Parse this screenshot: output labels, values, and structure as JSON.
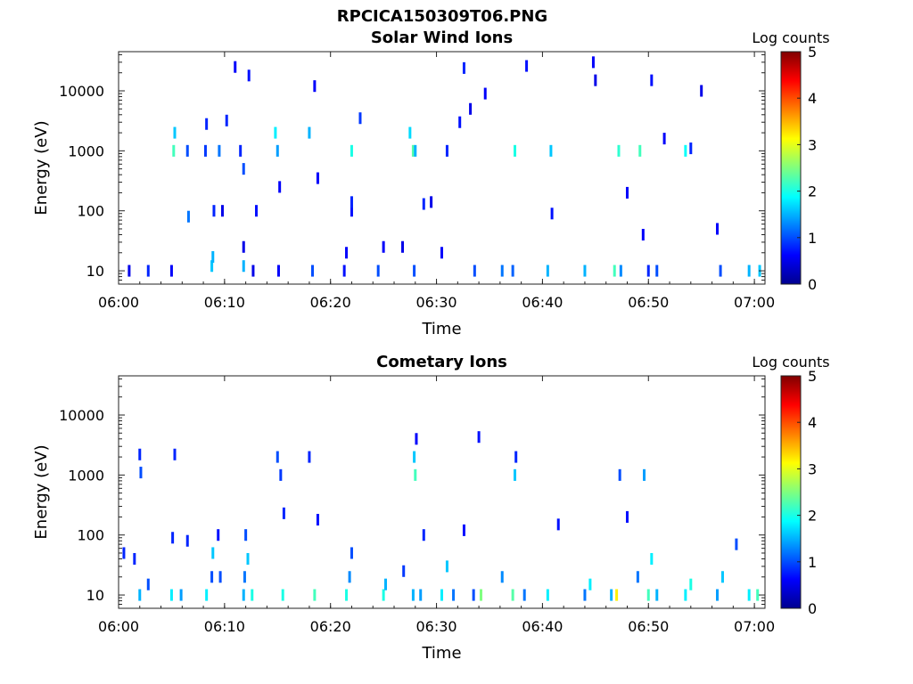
{
  "figure": {
    "filename": "RPCICA150309T06.PNG"
  },
  "colorbar": {
    "label": "Log counts",
    "ticks": [
      "0",
      "1",
      "2",
      "3",
      "4",
      "5"
    ],
    "range": [
      0,
      5
    ],
    "colormap": "jet"
  },
  "chart_data": [
    {
      "type": "heatmap",
      "title": "Solar Wind Ions",
      "xlabel": "Time",
      "ylabel": "Energy (eV)",
      "x_tick_labels": [
        "06:00",
        "06:10",
        "06:20",
        "06:30",
        "06:40",
        "06:50",
        "07:00"
      ],
      "x_range_minutes": [
        0,
        61
      ],
      "y_scale": "log",
      "y_tick_labels": [
        "10",
        "100",
        "1000",
        "10000"
      ],
      "y_range": [
        6,
        45000
      ],
      "z_label": "Log counts",
      "z_range": [
        0,
        5
      ],
      "cells": [
        [
          1.0,
          10,
          0.5
        ],
        [
          2.8,
          10,
          0.8
        ],
        [
          5.0,
          10,
          0.6
        ],
        [
          5.2,
          1000,
          2.2
        ],
        [
          5.3,
          2000,
          1.6
        ],
        [
          6.5,
          1000,
          1.0
        ],
        [
          6.6,
          80,
          1.2
        ],
        [
          8.2,
          1000,
          0.9
        ],
        [
          8.3,
          2800,
          0.8
        ],
        [
          8.8,
          12,
          1.6
        ],
        [
          8.9,
          17,
          1.5
        ],
        [
          9.0,
          100,
          0.8
        ],
        [
          9.5,
          1000,
          1.2
        ],
        [
          9.8,
          100,
          0.5
        ],
        [
          10.2,
          3200,
          0.8
        ],
        [
          11.0,
          25000,
          0.6
        ],
        [
          11.5,
          1000,
          0.8
        ],
        [
          11.8,
          500,
          1.0
        ],
        [
          11.8,
          12,
          1.5
        ],
        [
          11.8,
          25,
          0.5
        ],
        [
          12.3,
          18000,
          0.7
        ],
        [
          12.7,
          10,
          0.5
        ],
        [
          13.0,
          100,
          0.7
        ],
        [
          14.8,
          2000,
          1.8
        ],
        [
          15.0,
          1000,
          1.4
        ],
        [
          15.1,
          10,
          0.6
        ],
        [
          15.2,
          250,
          0.6
        ],
        [
          18.0,
          2000,
          1.5
        ],
        [
          18.3,
          10,
          1.0
        ],
        [
          18.5,
          12000,
          0.6
        ],
        [
          18.8,
          350,
          0.6
        ],
        [
          21.3,
          10,
          0.7
        ],
        [
          21.5,
          20,
          0.6
        ],
        [
          22.0,
          1000,
          2.0
        ],
        [
          22.0,
          100,
          0.7
        ],
        [
          22.0,
          140,
          0.8
        ],
        [
          22.8,
          3500,
          0.9
        ],
        [
          24.5,
          10,
          1.0
        ],
        [
          25.0,
          25,
          0.6
        ],
        [
          26.8,
          25,
          0.5
        ],
        [
          27.5,
          2000,
          1.7
        ],
        [
          27.8,
          1000,
          2.3
        ],
        [
          28.0,
          1000,
          1.5
        ],
        [
          27.9,
          10,
          1.0
        ],
        [
          28.8,
          130,
          0.8
        ],
        [
          29.5,
          140,
          0.5
        ],
        [
          30.5,
          20,
          0.6
        ],
        [
          31.0,
          1000,
          0.8
        ],
        [
          32.2,
          3000,
          0.7
        ],
        [
          32.6,
          24000,
          0.8
        ],
        [
          33.2,
          5000,
          0.5
        ],
        [
          33.6,
          10,
          1.0
        ],
        [
          34.6,
          9000,
          0.6
        ],
        [
          36.2,
          10,
          1.2
        ],
        [
          37.2,
          10,
          1.1
        ],
        [
          37.4,
          1000,
          2.0
        ],
        [
          38.5,
          26000,
          0.7
        ],
        [
          40.5,
          10,
          1.5
        ],
        [
          40.8,
          1000,
          1.6
        ],
        [
          40.9,
          90,
          0.7
        ],
        [
          44.0,
          10,
          1.5
        ],
        [
          44.8,
          30000,
          0.6
        ],
        [
          45.0,
          15000,
          0.5
        ],
        [
          46.8,
          10,
          2.2
        ],
        [
          47.2,
          1000,
          2.1
        ],
        [
          47.4,
          10,
          1.3
        ],
        [
          48.0,
          200,
          0.6
        ],
        [
          49.2,
          1000,
          2.2
        ],
        [
          49.5,
          40,
          0.6
        ],
        [
          50.0,
          10,
          0.8
        ],
        [
          50.3,
          15000,
          0.7
        ],
        [
          50.8,
          10,
          1.0
        ],
        [
          51.5,
          1600,
          0.6
        ],
        [
          53.5,
          1000,
          1.9
        ],
        [
          54.0,
          1100,
          0.8
        ],
        [
          55.0,
          10000,
          0.5
        ],
        [
          56.5,
          50,
          0.6
        ],
        [
          56.8,
          10,
          1.0
        ],
        [
          59.5,
          10,
          1.5
        ],
        [
          60.5,
          10,
          1.6
        ]
      ]
    },
    {
      "type": "heatmap",
      "title": "Cometary Ions",
      "xlabel": "Time",
      "ylabel": "Energy (eV)",
      "x_tick_labels": [
        "06:00",
        "06:10",
        "06:20",
        "06:30",
        "06:40",
        "06:50",
        "07:00"
      ],
      "x_range_minutes": [
        0,
        61
      ],
      "y_scale": "log",
      "y_tick_labels": [
        "10",
        "100",
        "1000",
        "10000"
      ],
      "y_range": [
        6,
        45000
      ],
      "z_label": "Log counts",
      "z_range": [
        0,
        5
      ],
      "cells": [
        [
          0.5,
          50,
          0.8
        ],
        [
          1.5,
          40,
          0.8
        ],
        [
          2.0,
          10,
          1.5
        ],
        [
          2.0,
          2200,
          0.8
        ],
        [
          2.1,
          1100,
          1.0
        ],
        [
          2.8,
          15,
          1.0
        ],
        [
          5.0,
          10,
          1.8
        ],
        [
          5.1,
          90,
          0.8
        ],
        [
          5.3,
          2200,
          0.8
        ],
        [
          5.9,
          10,
          1.4
        ],
        [
          6.5,
          80,
          0.8
        ],
        [
          8.3,
          10,
          1.8
        ],
        [
          8.8,
          20,
          1.0
        ],
        [
          8.9,
          50,
          1.6
        ],
        [
          9.4,
          100,
          0.7
        ],
        [
          9.6,
          20,
          1.0
        ],
        [
          11.8,
          10,
          1.5
        ],
        [
          11.9,
          20,
          1.2
        ],
        [
          12.0,
          100,
          1.0
        ],
        [
          12.2,
          40,
          1.6
        ],
        [
          12.6,
          10,
          2.0
        ],
        [
          15.0,
          2000,
          1.0
        ],
        [
          15.3,
          1000,
          0.9
        ],
        [
          15.5,
          10,
          2.0
        ],
        [
          15.6,
          230,
          0.8
        ],
        [
          18.0,
          2000,
          0.8
        ],
        [
          18.5,
          10,
          2.2
        ],
        [
          18.8,
          180,
          0.7
        ],
        [
          21.5,
          10,
          2.0
        ],
        [
          21.8,
          20,
          1.3
        ],
        [
          22.0,
          50,
          1.0
        ],
        [
          25.0,
          10,
          2.0
        ],
        [
          25.2,
          15,
          1.5
        ],
        [
          26.9,
          25,
          0.9
        ],
        [
          27.8,
          10,
          1.5
        ],
        [
          27.9,
          2000,
          1.6
        ],
        [
          28.0,
          1000,
          2.2
        ],
        [
          28.1,
          4000,
          0.6
        ],
        [
          28.5,
          10,
          1.4
        ],
        [
          28.8,
          100,
          0.8
        ],
        [
          30.5,
          10,
          1.8
        ],
        [
          31.0,
          30,
          1.6
        ],
        [
          31.6,
          10,
          1.2
        ],
        [
          32.6,
          120,
          0.7
        ],
        [
          33.5,
          10,
          1.0
        ],
        [
          34.2,
          10,
          2.5
        ],
        [
          34.0,
          4300,
          0.7
        ],
        [
          36.2,
          20,
          1.3
        ],
        [
          37.2,
          10,
          2.3
        ],
        [
          37.4,
          1000,
          1.6
        ],
        [
          37.5,
          2000,
          0.8
        ],
        [
          38.3,
          10,
          1.2
        ],
        [
          40.5,
          10,
          1.8
        ],
        [
          41.5,
          150,
          0.7
        ],
        [
          44.0,
          10,
          1.2
        ],
        [
          44.5,
          15,
          1.8
        ],
        [
          46.5,
          10,
          1.5
        ],
        [
          47.0,
          10,
          3.2
        ],
        [
          47.3,
          1000,
          1.0
        ],
        [
          48.0,
          200,
          0.7
        ],
        [
          49.0,
          20,
          1.2
        ],
        [
          49.6,
          1000,
          1.4
        ],
        [
          50.0,
          10,
          2.2
        ],
        [
          50.3,
          40,
          1.8
        ],
        [
          50.8,
          10,
          1.5
        ],
        [
          53.5,
          10,
          1.8
        ],
        [
          54.0,
          15,
          2.0
        ],
        [
          56.5,
          10,
          1.4
        ],
        [
          57.0,
          20,
          1.6
        ],
        [
          58.3,
          70,
          1.0
        ],
        [
          59.5,
          10,
          1.8
        ],
        [
          60.3,
          10,
          2.2
        ]
      ]
    }
  ]
}
